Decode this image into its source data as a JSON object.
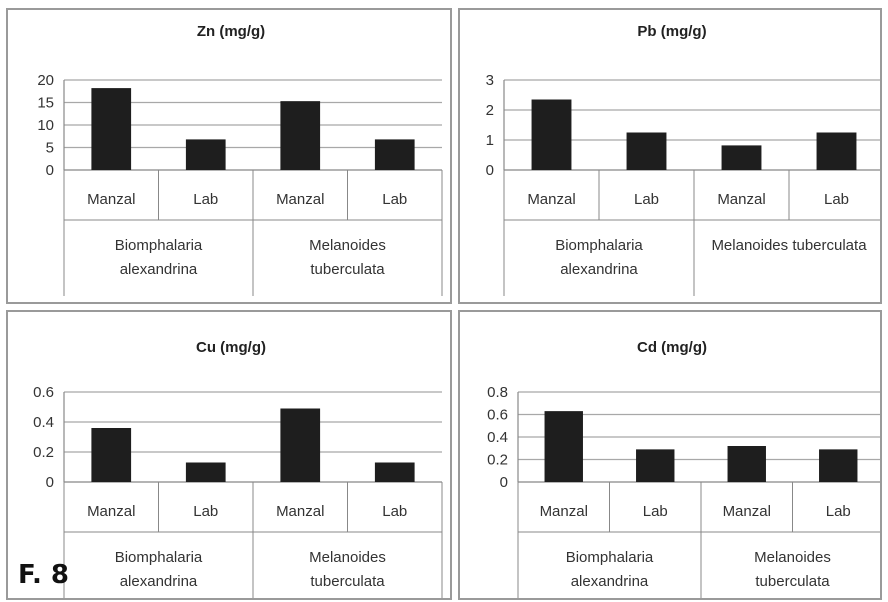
{
  "figure_label": "F. 8",
  "colors": {
    "bar": "#1e1e1e",
    "grid": "#a8a8a8",
    "axis": "#888888",
    "panel_border": "#9a9a9a"
  },
  "chart_data": [
    {
      "type": "bar",
      "title": "Zn (mg/g)",
      "categories": [
        "Manzal",
        "Lab",
        "Manzal",
        "Lab"
      ],
      "groups": [
        {
          "lines": [
            "Biomphalaria",
            "alexandrina"
          ]
        },
        {
          "lines": [
            "Melanoides",
            "tuberculata"
          ]
        }
      ],
      "values": [
        18.2,
        6.8,
        15.3,
        6.8
      ],
      "yticks": [
        "0",
        "5",
        "10",
        "15",
        "20"
      ],
      "ylim": [
        0,
        20
      ],
      "grid": true,
      "legend": "none"
    },
    {
      "type": "bar",
      "title": "Pb (mg/g)",
      "categories": [
        "Manzal",
        "Lab",
        "Manzal",
        "Lab"
      ],
      "groups": [
        {
          "lines": [
            "Biomphalaria",
            "alexandrina"
          ]
        },
        {
          "lines": [
            "Melanoides tuberculata"
          ]
        }
      ],
      "values": [
        2.35,
        1.25,
        0.82,
        1.25
      ],
      "yticks": [
        "0",
        "1",
        "2",
        "3"
      ],
      "ylim": [
        0,
        3
      ],
      "grid": true,
      "legend": "none"
    },
    {
      "type": "bar",
      "title": "Cu (mg/g)",
      "categories": [
        "Manzal",
        "Lab",
        "Manzal",
        "Lab"
      ],
      "groups": [
        {
          "lines": [
            "Biomphalaria",
            "alexandrina"
          ]
        },
        {
          "lines": [
            "Melanoides",
            "tuberculata"
          ]
        }
      ],
      "values": [
        0.36,
        0.13,
        0.49,
        0.13
      ],
      "yticks": [
        "0",
        "0.2",
        "0.4",
        "0.6"
      ],
      "ylim": [
        0,
        0.6
      ],
      "grid": true,
      "legend": "none"
    },
    {
      "type": "bar",
      "title": "Cd (mg/g)",
      "categories": [
        "Manzal",
        "Lab",
        "Manzal",
        "Lab"
      ],
      "groups": [
        {
          "lines": [
            "Biomphalaria",
            "alexandrina"
          ]
        },
        {
          "lines": [
            "Melanoides",
            "tuberculata"
          ]
        }
      ],
      "values": [
        0.63,
        0.29,
        0.32,
        0.29
      ],
      "yticks": [
        "0",
        "0.2",
        "0.4",
        "0.6",
        "0.8"
      ],
      "ylim": [
        0,
        0.8
      ],
      "grid": true,
      "legend": "none"
    }
  ]
}
